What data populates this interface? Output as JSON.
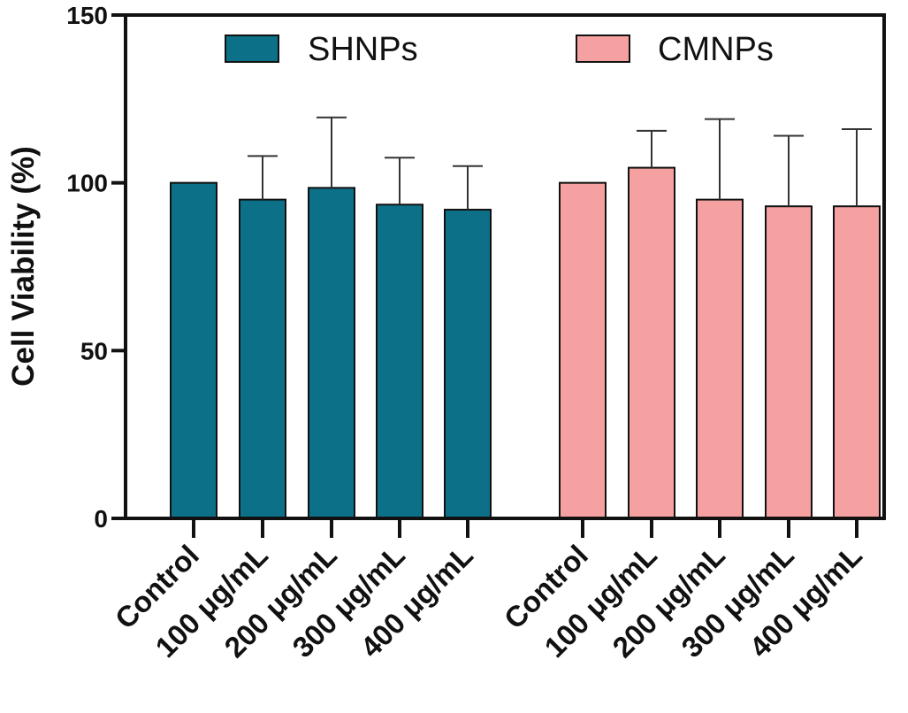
{
  "chart_data": {
    "type": "bar",
    "title": "",
    "xlabel": "",
    "ylabel": "Cell Viability (%)",
    "ylim": [
      0,
      150
    ],
    "yticks": [
      "0",
      "50",
      "100",
      "150"
    ],
    "grid": false,
    "legend_position": "top",
    "series": [
      {
        "name": "SHNPs",
        "color": "#0c7188",
        "categories": [
          "Control",
          "100 μg/mL",
          "200 μg/mL",
          "300 μg/mL",
          "400 μg/mL"
        ],
        "values": [
          100,
          95,
          98.5,
          93.5,
          92
        ],
        "errors": [
          0,
          13,
          21,
          14,
          13
        ]
      },
      {
        "name": "CMNPs",
        "color": "#f6a1a1",
        "categories": [
          "Control",
          "100 μg/mL",
          "200 μg/mL",
          "300 μg/mL",
          "400 μg/mL"
        ],
        "values": [
          100,
          104.5,
          95,
          93,
          93
        ],
        "errors": [
          0,
          11,
          24,
          21,
          23
        ]
      }
    ]
  }
}
